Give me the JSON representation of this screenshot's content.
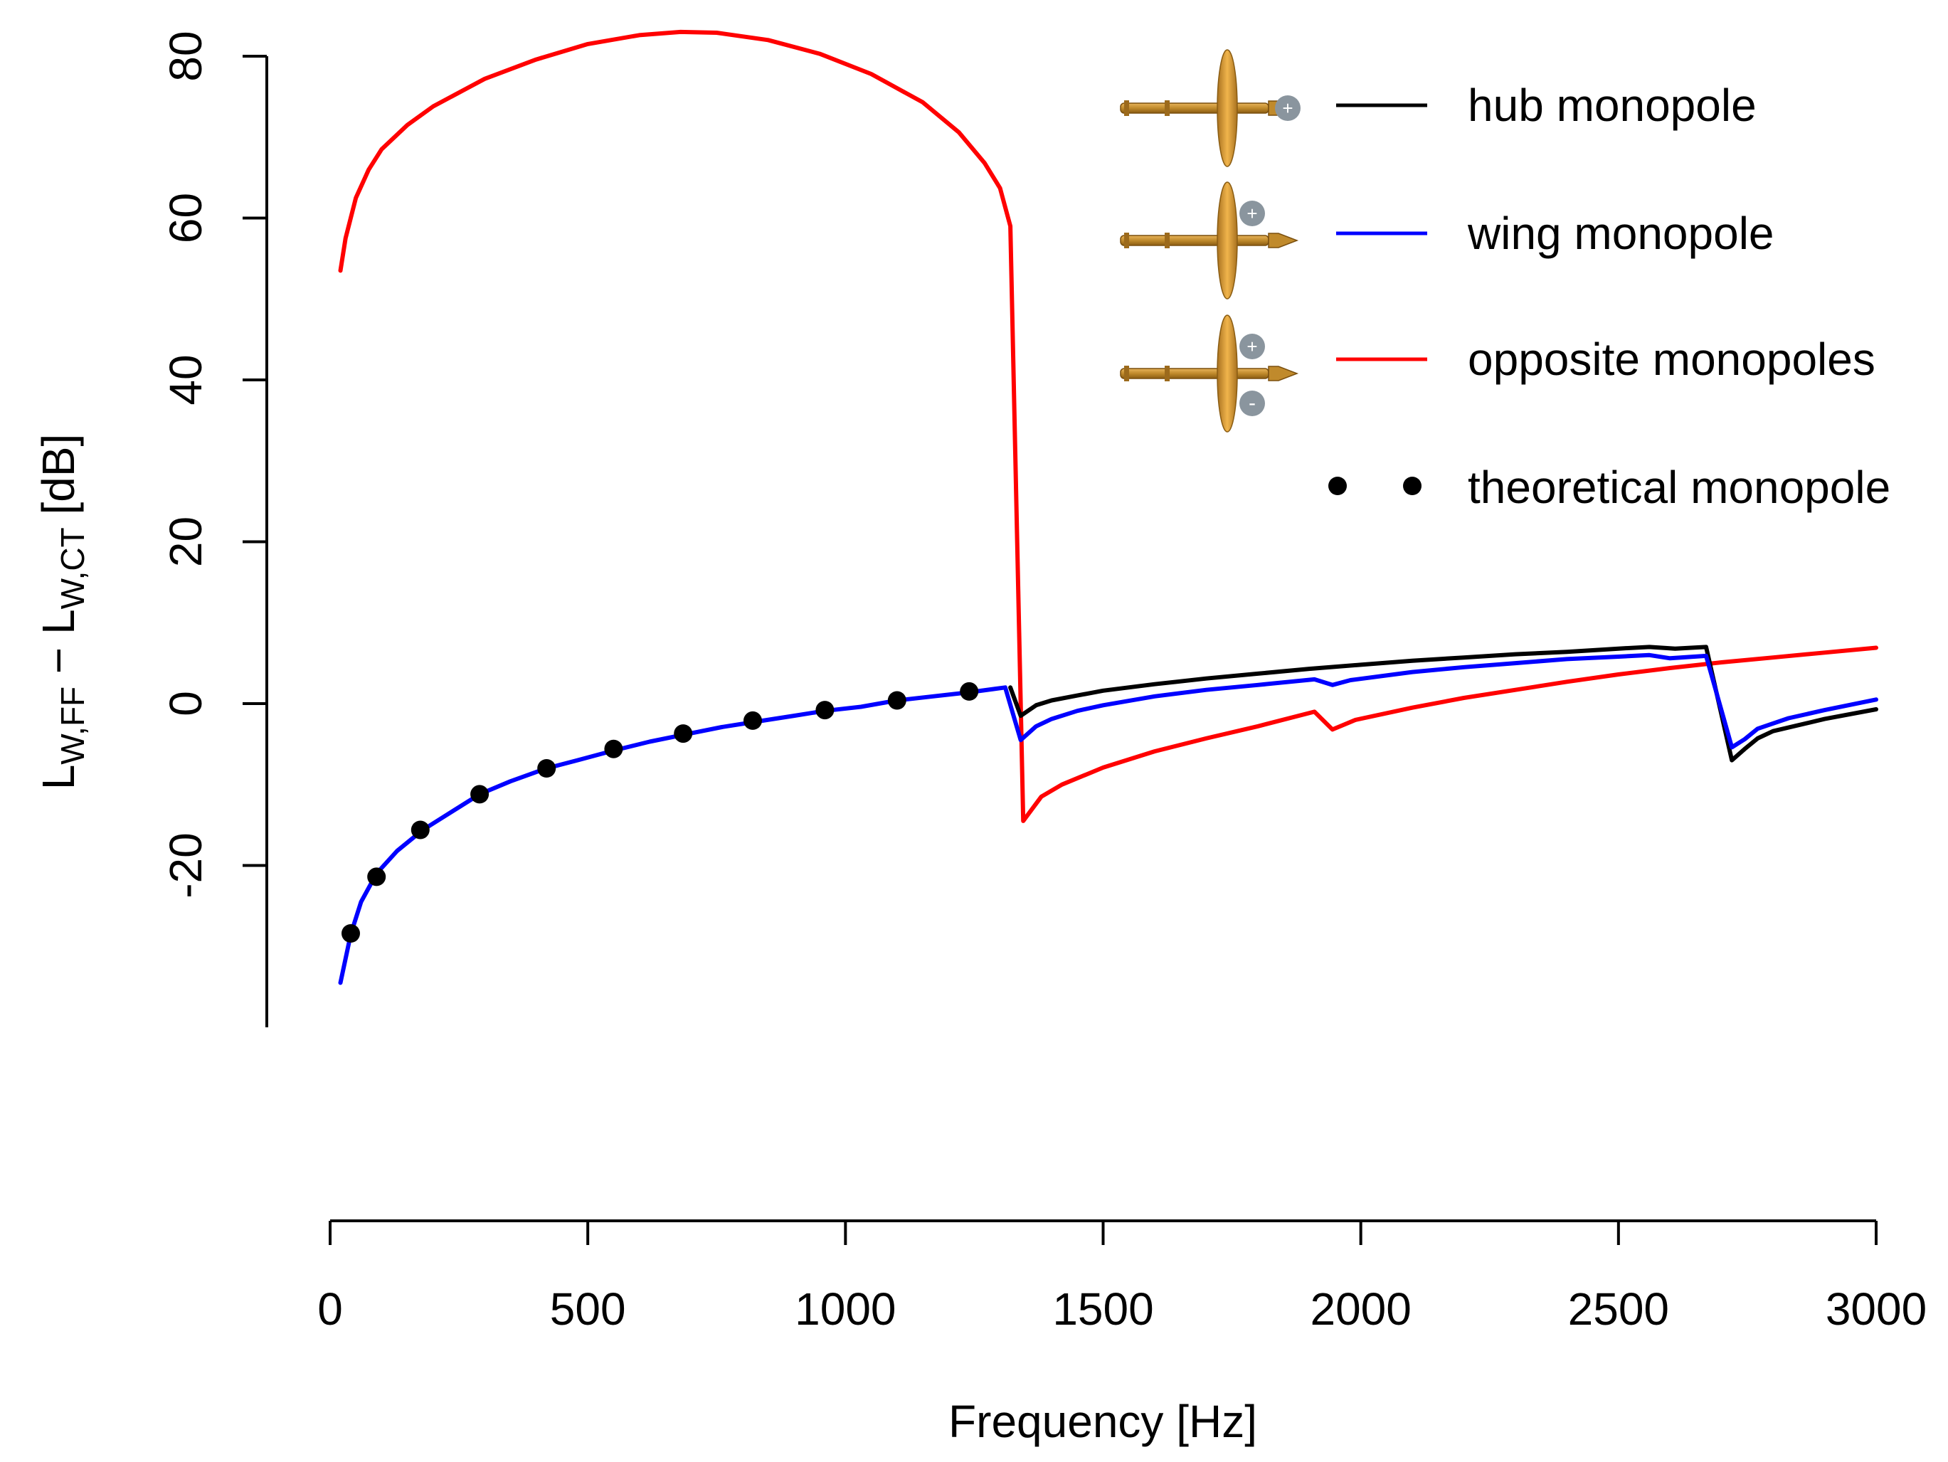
{
  "chart_data": {
    "type": "line",
    "title": "",
    "xlabel": "Frequency [Hz]",
    "ylabel": {
      "prefix": "L",
      "sub1": "W,FF",
      "mid": " − L",
      "sub2": "W,CT",
      "suffix": " [dB]"
    },
    "xlim": [
      0,
      3000
    ],
    "ylim": [
      -40,
      80
    ],
    "x_ticks": [
      0,
      500,
      1000,
      1500,
      2000,
      2500,
      3000
    ],
    "x_tick_labels": [
      "0",
      "500",
      "1000",
      "1500",
      "2000",
      "2500",
      "3000"
    ],
    "y_ticks": [
      -20,
      0,
      20,
      40,
      60,
      80
    ],
    "y_tick_labels": [
      "-20",
      "0",
      "20",
      "40",
      "60",
      "80"
    ],
    "grid": false,
    "legend_position": "top-right",
    "series": [
      {
        "name": "hub monopole",
        "color": "#000000",
        "style": "line",
        "icon": "propeller-hub-plus-icon",
        "x": [
          1320,
          1340,
          1370,
          1400,
          1450,
          1500,
          1600,
          1700,
          1800,
          1900,
          2000,
          2100,
          2200,
          2300,
          2400,
          2500,
          2560,
          2610,
          2670,
          2720,
          2745,
          2770,
          2800,
          2900,
          3000
        ],
        "y": [
          2.0,
          -1.5,
          -0.2,
          0.4,
          1.0,
          1.6,
          2.4,
          3.1,
          3.7,
          4.3,
          4.8,
          5.3,
          5.7,
          6.1,
          6.4,
          6.8,
          7.0,
          6.8,
          7.0,
          -7.0,
          -5.6,
          -4.3,
          -3.4,
          -1.9,
          -0.7
        ]
      },
      {
        "name": "wing monopole",
        "color": "#0000ff",
        "style": "line",
        "icon": "propeller-wing-plus-icon",
        "x": [
          20,
          40,
          60,
          90,
          130,
          180,
          240,
          290,
          350,
          420,
          480,
          550,
          620,
          690,
          760,
          830,
          900,
          960,
          1030,
          1100,
          1170,
          1240,
          1310,
          1340,
          1370,
          1400,
          1450,
          1500,
          1600,
          1700,
          1800,
          1910,
          1945,
          1980,
          2100,
          2200,
          2300,
          2400,
          2500,
          2560,
          2600,
          2670,
          2720,
          2745,
          2770,
          2830,
          2900,
          3000
        ],
        "y": [
          -34.5,
          -28.5,
          -24.5,
          -21.0,
          -18.2,
          -15.6,
          -13.2,
          -11.2,
          -9.6,
          -8.0,
          -7.0,
          -5.8,
          -4.7,
          -3.8,
          -2.9,
          -2.2,
          -1.5,
          -0.9,
          -0.4,
          0.4,
          0.9,
          1.4,
          2.0,
          -4.5,
          -2.8,
          -1.9,
          -0.9,
          -0.2,
          0.9,
          1.7,
          2.3,
          3.0,
          2.3,
          2.9,
          3.9,
          4.5,
          5.0,
          5.5,
          5.8,
          6.0,
          5.6,
          5.9,
          -5.4,
          -4.4,
          -3.1,
          -1.8,
          -0.8,
          0.5
        ]
      },
      {
        "name": "opposite monopoles",
        "color": "#ff0000",
        "style": "line",
        "icon": "propeller-opposite-plus-minus-icon",
        "x": [
          20,
          30,
          50,
          75,
          100,
          150,
          200,
          300,
          400,
          500,
          600,
          680,
          750,
          850,
          950,
          1050,
          1150,
          1220,
          1270,
          1300,
          1320,
          1345,
          1380,
          1420,
          1500,
          1600,
          1700,
          1800,
          1910,
          1945,
          1990,
          2100,
          2200,
          2300,
          2400,
          2500,
          2600,
          2700,
          2800,
          2900,
          3000
        ],
        "y": [
          53.5,
          57.5,
          62.5,
          66.0,
          68.5,
          71.5,
          73.8,
          77.2,
          79.6,
          81.5,
          82.6,
          83.0,
          82.9,
          82.0,
          80.3,
          77.8,
          74.3,
          70.6,
          66.8,
          63.7,
          59.0,
          -14.5,
          -11.5,
          -10.0,
          -7.9,
          -5.9,
          -4.3,
          -2.8,
          -1.0,
          -3.2,
          -2.0,
          -0.5,
          0.7,
          1.7,
          2.7,
          3.6,
          4.4,
          5.1,
          5.7,
          6.3,
          6.9
        ]
      },
      {
        "name": "theoretical monopole",
        "color": "#000000",
        "style": "points",
        "icon": "",
        "x": [
          40,
          90,
          175,
          290,
          420,
          550,
          685,
          820,
          960,
          1100,
          1240
        ],
        "y": [
          -28.4,
          -21.4,
          -15.6,
          -11.2,
          -8.0,
          -5.6,
          -3.7,
          -2.1,
          -0.8,
          0.4,
          1.5
        ]
      }
    ]
  }
}
